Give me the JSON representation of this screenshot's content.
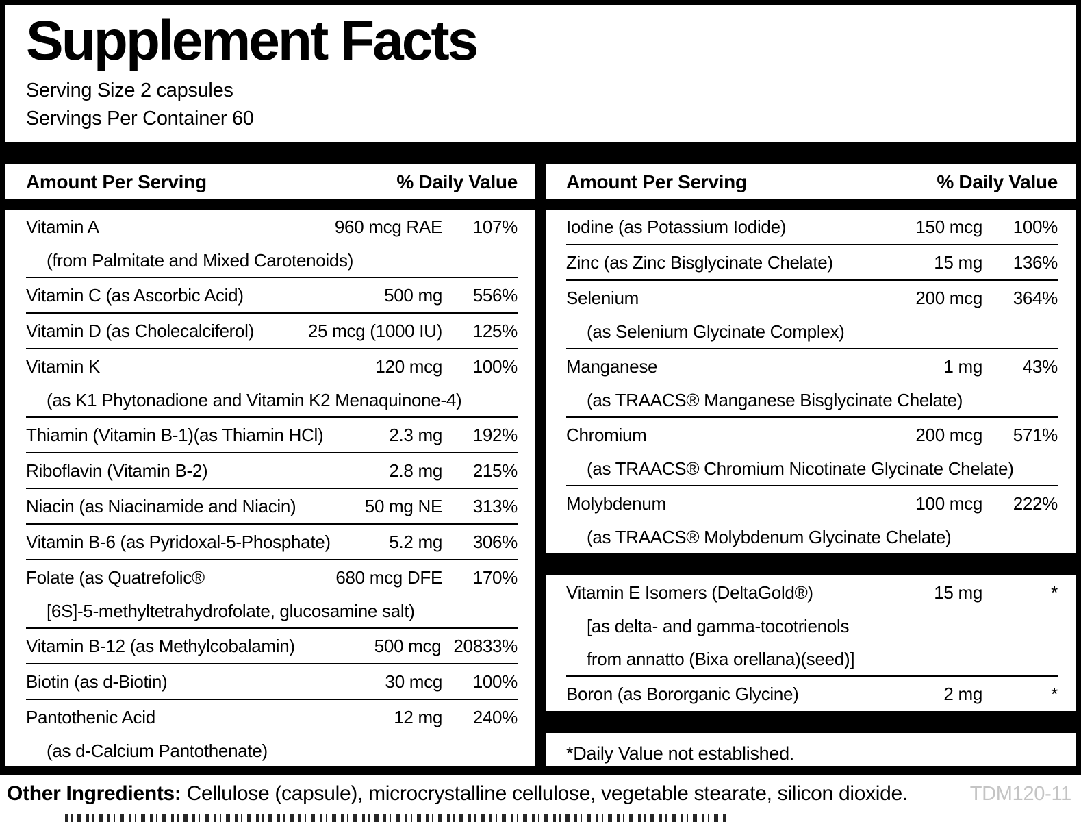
{
  "title": "Supplement Facts",
  "serving": {
    "size_line": "Serving Size 2 capsules",
    "container_line": "Servings Per Container 60"
  },
  "columns": {
    "amount_header": "Amount Per Serving",
    "dv_header": "% Daily Value"
  },
  "left_rows": [
    {
      "name": "Vitamin A",
      "amount": "960 mcg RAE",
      "dv": "107%",
      "subs": [
        "(from Palmitate and Mixed Carotenoids)"
      ]
    },
    {
      "name": "Vitamin C (as Ascorbic Acid)",
      "amount": "500 mg",
      "dv": "556%"
    },
    {
      "name": "Vitamin D (as Cholecalciferol)",
      "amount": "25 mcg (1000 IU)",
      "dv": "125%"
    },
    {
      "name": "Vitamin K",
      "amount": "120 mcg",
      "dv": "100%",
      "subs": [
        "(as K1 Phytonadione and Vitamin K2 Menaquinone-4)"
      ]
    },
    {
      "name": "Thiamin (Vitamin B-1)(as Thiamin HCl)",
      "amount": "2.3 mg",
      "dv": "192%"
    },
    {
      "name": "Riboflavin (Vitamin B-2)",
      "amount": "2.8 mg",
      "dv": "215%"
    },
    {
      "name": "Niacin (as Niacinamide and Niacin)",
      "amount": "50 mg NE",
      "dv": "313%"
    },
    {
      "name": "Vitamin B-6 (as Pyridoxal-5-Phosphate)",
      "amount": "5.2 mg",
      "dv": "306%"
    },
    {
      "name": "Folate (as Quatrefolic®",
      "amount": "680 mcg DFE",
      "dv": "170%",
      "subs": [
        "[6S]-5-methyltetrahydrofolate, glucosamine salt)"
      ]
    },
    {
      "name": "Vitamin B-12 (as Methylcobalamin)",
      "amount": "500 mcg",
      "dv": "20833%"
    },
    {
      "name": "Biotin (as d-Biotin)",
      "amount": "30 mcg",
      "dv": "100%"
    },
    {
      "name": "Pantothenic Acid",
      "amount": "12 mg",
      "dv": "240%",
      "subs": [
        "(as d-Calcium Pantothenate)"
      ]
    }
  ],
  "right_rows_minerals": [
    {
      "name": "Iodine (as Potassium Iodide)",
      "amount": "150 mcg",
      "dv": "100%"
    },
    {
      "name": "Zinc (as Zinc Bisglycinate Chelate)",
      "amount": "15 mg",
      "dv": "136%"
    },
    {
      "name": "Selenium",
      "amount": "200 mcg",
      "dv": "364%",
      "subs": [
        "(as Selenium Glycinate Complex)"
      ]
    },
    {
      "name": "Manganese",
      "amount": "1 mg",
      "dv": "43%",
      "subs": [
        "(as TRAACS® Manganese Bisglycinate Chelate)"
      ]
    },
    {
      "name": "Chromium",
      "amount": "200 mcg",
      "dv": "571%",
      "subs": [
        "(as TRAACS® Chromium Nicotinate Glycinate Chelate)"
      ]
    },
    {
      "name": "Molybdenum",
      "amount": "100 mcg",
      "dv": "222%",
      "subs": [
        "(as TRAACS® Molybdenum Glycinate Chelate)"
      ]
    }
  ],
  "right_rows_other": [
    {
      "name": "Vitamin E Isomers (DeltaGold®)",
      "amount": "15 mg",
      "dv": "*",
      "subs": [
        "[as delta- and gamma-tocotrienols",
        "from annatto (Bixa orellana)(seed)]"
      ]
    },
    {
      "name": "Boron (as Bororganic Glycine)",
      "amount": "2 mg",
      "dv": "*"
    }
  ],
  "footnote": "*Daily Value not established.",
  "other_ingredients": {
    "label": "Other Ingredients:",
    "text": "Cellulose (capsule), microcrystalline cellulose, vegetable stearate, silicon dioxide."
  },
  "code": "TDM120-11"
}
